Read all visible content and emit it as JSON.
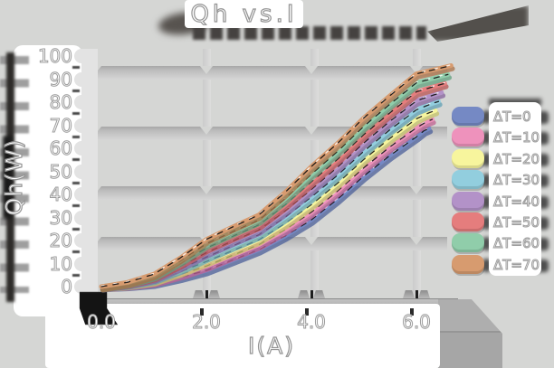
{
  "chart_data": {
    "type": "line",
    "title": "Qh vs.I",
    "xlabel": "I(A)",
    "ylabel": "Qh(W)",
    "x_tick_labels": [
      "0.0",
      "2.0",
      "4.0",
      "6.0"
    ],
    "y_tick_labels": [
      "100",
      "90",
      "80",
      "70",
      "60",
      "50",
      "40",
      "30",
      "20",
      "10",
      "0"
    ],
    "x_range": [
      0,
      6.8
    ],
    "y_range": [
      0,
      105
    ],
    "grid": "embossed-gray-bands",
    "legend_position": "right",
    "style": "embossed-3d-gray-theme, white outlined text, curves with drop shadows and dashed centerlines",
    "series": [
      {
        "name": "ΔT=0",
        "color": "#7589c4",
        "dark": "#4b5f9a",
        "points": [
          [
            0,
            0
          ],
          [
            0.5,
            0.5
          ],
          [
            1,
            1.5
          ],
          [
            1.5,
            4
          ],
          [
            2,
            7
          ],
          [
            2.5,
            11.5
          ],
          [
            3,
            16
          ],
          [
            3.5,
            22
          ],
          [
            4,
            29
          ],
          [
            4.5,
            38
          ],
          [
            5,
            48
          ],
          [
            5.5,
            57
          ],
          [
            6,
            65
          ],
          [
            6.15,
            67.7
          ],
          [
            6.24,
            68.6
          ]
        ]
      },
      {
        "name": "ΔT=10",
        "color": "#ee92bc",
        "dark": "#c06090",
        "points": [
          [
            0,
            0
          ],
          [
            0.5,
            0.7
          ],
          [
            1,
            2.1
          ],
          [
            1.5,
            5.2
          ],
          [
            2,
            8.9
          ],
          [
            2.5,
            13.6
          ],
          [
            3,
            18.2
          ],
          [
            3.5,
            24.7
          ],
          [
            4,
            32.3
          ],
          [
            4.5,
            41.5
          ],
          [
            5,
            51.6
          ],
          [
            5.5,
            60.7
          ],
          [
            6,
            68.9
          ],
          [
            6.2,
            71.6
          ],
          [
            6.3,
            72.5
          ]
        ]
      },
      {
        "name": "ΔT=20",
        "color": "#f7f59d",
        "dark": "#c6c468",
        "points": [
          [
            0,
            0
          ],
          [
            0.5,
            0.9
          ],
          [
            1,
            2.6
          ],
          [
            1.5,
            6.4
          ],
          [
            2,
            10.9
          ],
          [
            2.5,
            15.6
          ],
          [
            3,
            20.3
          ],
          [
            3.5,
            27.4
          ],
          [
            4,
            35.6
          ],
          [
            4.5,
            44.9
          ],
          [
            5,
            55.2
          ],
          [
            5.5,
            64.4
          ],
          [
            6,
            72.8
          ],
          [
            6.25,
            75.5
          ],
          [
            6.36,
            76.4
          ]
        ]
      },
      {
        "name": "ΔT=30",
        "color": "#92cede",
        "dark": "#5e9fb4",
        "points": [
          [
            0,
            0
          ],
          [
            0.5,
            1.1
          ],
          [
            1,
            3.2
          ],
          [
            1.5,
            7.6
          ],
          [
            2,
            12.8
          ],
          [
            2.5,
            17.7
          ],
          [
            3,
            22.5
          ],
          [
            3.5,
            30.1
          ],
          [
            4,
            38.9
          ],
          [
            4.5,
            48.4
          ],
          [
            5,
            58.8
          ],
          [
            5.5,
            68.1
          ],
          [
            6,
            76.7
          ],
          [
            6.3,
            79.4
          ],
          [
            6.42,
            80.3
          ]
        ]
      },
      {
        "name": "ΔT=40",
        "color": "#b392c8",
        "dark": "#84619c",
        "points": [
          [
            0,
            0
          ],
          [
            0.5,
            1.3
          ],
          [
            1,
            3.7
          ],
          [
            1.5,
            8.8
          ],
          [
            2,
            14.7
          ],
          [
            2.5,
            19.8
          ],
          [
            3,
            24.6
          ],
          [
            3.5,
            32.8
          ],
          [
            4,
            42.2
          ],
          [
            4.5,
            51.9
          ],
          [
            5,
            62.4
          ],
          [
            5.5,
            71.8
          ],
          [
            6,
            80.6
          ],
          [
            6.35,
            83.3
          ],
          [
            6.48,
            84.2
          ]
        ]
      },
      {
        "name": "ΔT=50",
        "color": "#e57d7d",
        "dark": "#b85252",
        "points": [
          [
            0,
            0
          ],
          [
            0.5,
            1.5
          ],
          [
            1,
            4.3
          ],
          [
            1.5,
            10
          ],
          [
            2,
            16.7
          ],
          [
            2.5,
            21.8
          ],
          [
            3,
            26.8
          ],
          [
            3.5,
            35.5
          ],
          [
            4,
            45.5
          ],
          [
            4.5,
            55.3
          ],
          [
            5,
            66
          ],
          [
            5.5,
            75.5
          ],
          [
            6,
            84.5
          ],
          [
            6.4,
            87.2
          ],
          [
            6.54,
            88.1
          ]
        ]
      },
      {
        "name": "ΔT=60",
        "color": "#90cdaa",
        "dark": "#5fa07e",
        "points": [
          [
            0,
            0
          ],
          [
            0.5,
            1.7
          ],
          [
            1,
            4.8
          ],
          [
            1.5,
            11.2
          ],
          [
            2,
            18.6
          ],
          [
            2.5,
            23.8
          ],
          [
            3,
            28.9
          ],
          [
            3.5,
            38.2
          ],
          [
            4,
            48.8
          ],
          [
            4.5,
            58.7
          ],
          [
            5,
            69.6
          ],
          [
            5.5,
            79.2
          ],
          [
            6,
            88.4
          ],
          [
            6.45,
            91.1
          ],
          [
            6.6,
            92
          ]
        ]
      },
      {
        "name": "ΔT=70",
        "color": "#d79b6f",
        "dark": "#aa7046",
        "points": [
          [
            0,
            0
          ],
          [
            0.5,
            1.9
          ],
          [
            1,
            5.4
          ],
          [
            1.5,
            12.4
          ],
          [
            2,
            20.5
          ],
          [
            2.5,
            25.9
          ],
          [
            3,
            31.1
          ],
          [
            3.5,
            40.9
          ],
          [
            4,
            52.1
          ],
          [
            4.5,
            62.2
          ],
          [
            5,
            73.2
          ],
          [
            5.5,
            82.9
          ],
          [
            6,
            92.3
          ],
          [
            6.5,
            95
          ],
          [
            6.66,
            95.9
          ]
        ]
      }
    ]
  }
}
